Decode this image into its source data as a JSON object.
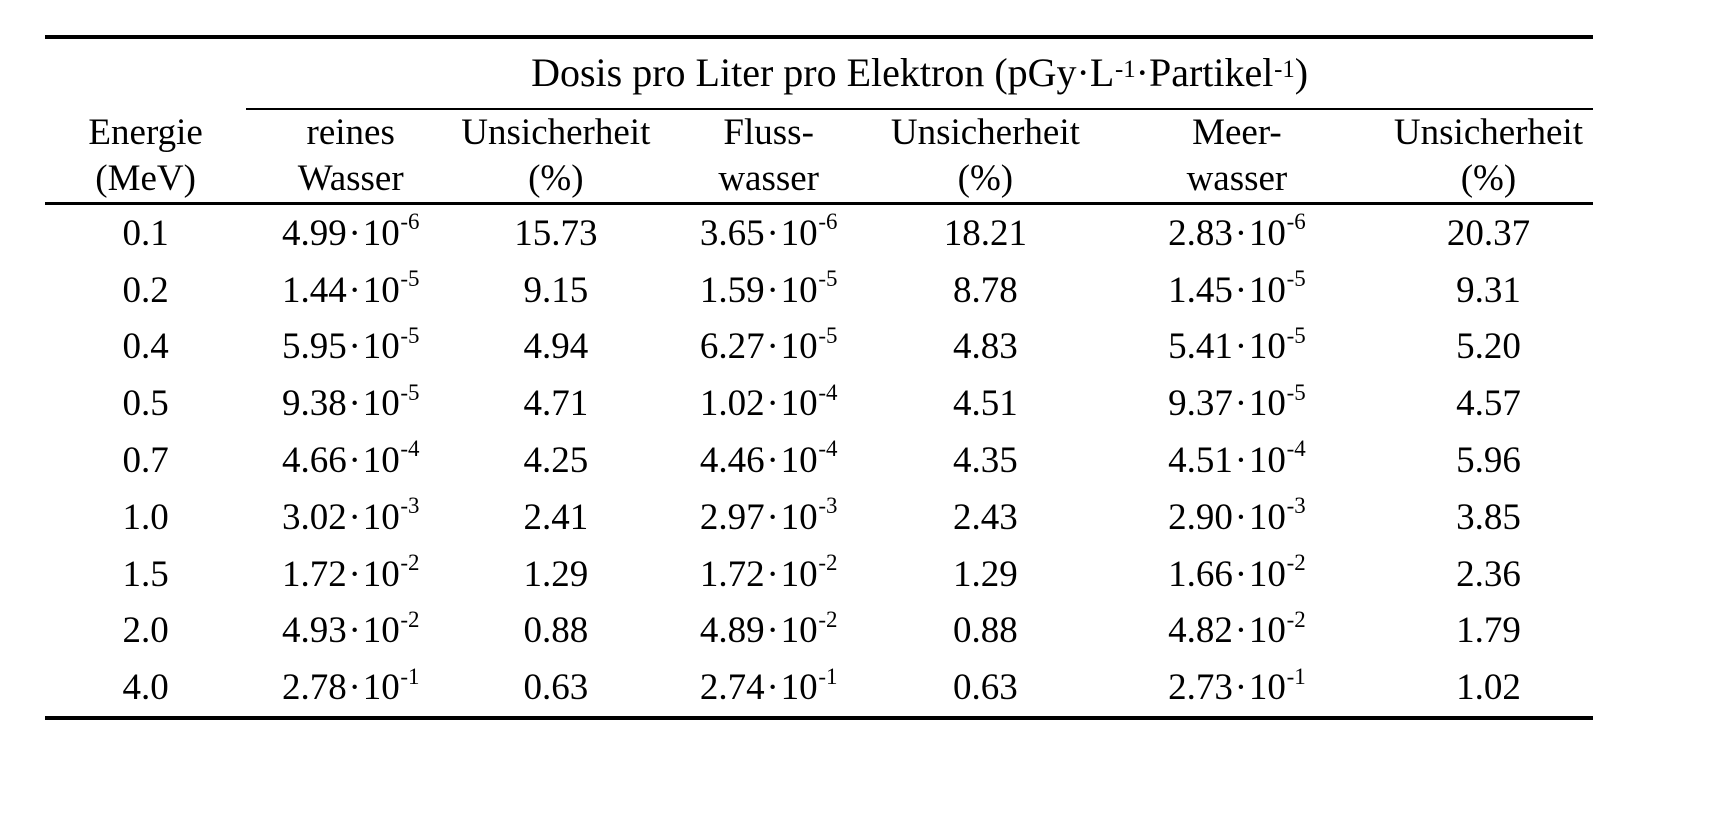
{
  "page": {
    "background": "#ffffff",
    "text_color": "#000000"
  },
  "table": {
    "group_header": {
      "parts": [
        {
          "text": "Dosis pro Liter pro Elektron (pGy·L"
        },
        {
          "sup": "-1"
        },
        {
          "text": "·Partikel"
        },
        {
          "sup": "-1"
        },
        {
          "text": ")"
        }
      ]
    },
    "columns": [
      {
        "id": "energy",
        "lines": [
          "Energie",
          "(MeV)"
        ]
      },
      {
        "id": "pure-water",
        "lines": [
          "reines",
          "Wasser"
        ]
      },
      {
        "id": "uncertainty-pure",
        "lines": [
          "Unsicherheit",
          "(%)"
        ]
      },
      {
        "id": "river-water",
        "lines": [
          "Fluss-",
          "wasser"
        ]
      },
      {
        "id": "uncertainty-river",
        "lines": [
          "Unsicherheit",
          "(%)"
        ]
      },
      {
        "id": "sea-water",
        "lines": [
          "Meer-",
          "wasser"
        ]
      },
      {
        "id": "uncertainty-sea",
        "lines": [
          "Unsicherheit",
          "(%)"
        ]
      }
    ],
    "notation": {
      "dot": "·",
      "base": "10"
    },
    "rows": [
      {
        "energy": "0.1",
        "pure": {
          "m": "4.99",
          "e": "-6"
        },
        "pure_unc": "15.73",
        "river": {
          "m": "3.65",
          "e": "-6"
        },
        "river_unc": "18.21",
        "sea": {
          "m": "2.83",
          "e": "-6"
        },
        "sea_unc": "20.37"
      },
      {
        "energy": "0.2",
        "pure": {
          "m": "1.44",
          "e": "-5"
        },
        "pure_unc": "9.15",
        "river": {
          "m": "1.59",
          "e": "-5"
        },
        "river_unc": "8.78",
        "sea": {
          "m": "1.45",
          "e": "-5"
        },
        "sea_unc": "9.31"
      },
      {
        "energy": "0.4",
        "pure": {
          "m": "5.95",
          "e": "-5"
        },
        "pure_unc": "4.94",
        "river": {
          "m": "6.27",
          "e": "-5"
        },
        "river_unc": "4.83",
        "sea": {
          "m": "5.41",
          "e": "-5"
        },
        "sea_unc": "5.20"
      },
      {
        "energy": "0.5",
        "pure": {
          "m": "9.38",
          "e": "-5"
        },
        "pure_unc": "4.71",
        "river": {
          "m": "1.02",
          "e": "-4"
        },
        "river_unc": "4.51",
        "sea": {
          "m": "9.37",
          "e": "-5"
        },
        "sea_unc": "4.57"
      },
      {
        "energy": "0.7",
        "pure": {
          "m": "4.66",
          "e": "-4"
        },
        "pure_unc": "4.25",
        "river": {
          "m": "4.46",
          "e": "-4"
        },
        "river_unc": "4.35",
        "sea": {
          "m": "4.51",
          "e": "-4"
        },
        "sea_unc": "5.96"
      },
      {
        "energy": "1.0",
        "pure": {
          "m": "3.02",
          "e": "-3"
        },
        "pure_unc": "2.41",
        "river": {
          "m": "2.97",
          "e": "-3"
        },
        "river_unc": "2.43",
        "sea": {
          "m": "2.90",
          "e": "-3"
        },
        "sea_unc": "3.85"
      },
      {
        "energy": "1.5",
        "pure": {
          "m": "1.72",
          "e": "-2"
        },
        "pure_unc": "1.29",
        "river": {
          "m": "1.72",
          "e": "-2"
        },
        "river_unc": "1.29",
        "sea": {
          "m": "1.66",
          "e": "-2"
        },
        "sea_unc": "2.36"
      },
      {
        "energy": "2.0",
        "pure": {
          "m": "4.93",
          "e": "-2"
        },
        "pure_unc": "0.88",
        "river": {
          "m": "4.89",
          "e": "-2"
        },
        "river_unc": "0.88",
        "sea": {
          "m": "4.82",
          "e": "-2"
        },
        "sea_unc": "1.79"
      },
      {
        "energy": "4.0",
        "pure": {
          "m": "2.78",
          "e": "-1"
        },
        "pure_unc": "0.63",
        "river": {
          "m": "2.74",
          "e": "-1"
        },
        "river_unc": "0.63",
        "sea": {
          "m": "2.73",
          "e": "-1"
        },
        "sea_unc": "1.02"
      }
    ]
  }
}
